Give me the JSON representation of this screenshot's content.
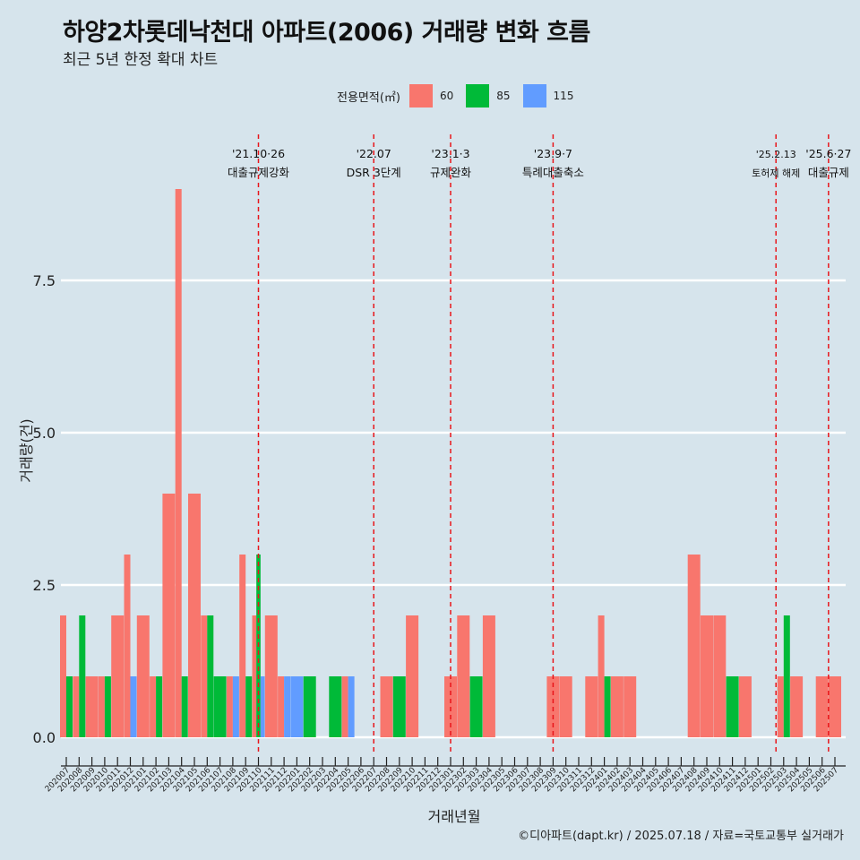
{
  "title": "하양2차롯데낙천대 아파트(2006) 거래량 변화 흐름",
  "subtitle": "최근 5년 한정 확대 차트",
  "caption": "©디아파트(dapt.kr) / 2025.07.18 / 자료=국토교통부 실거래가",
  "chart_data": {
    "type": "bar",
    "stacking": "dodge",
    "xlabel": "거래년월",
    "ylabel": "거래량(건)",
    "ylim": [
      -0.4,
      9.4
    ],
    "y_ticks": [
      0.0,
      2.5,
      5.0,
      7.5
    ],
    "y_tick_labels": [
      "0.0",
      "2.5",
      "5.0",
      "7.5"
    ],
    "grid": true,
    "legend_title": "전용면적(㎡)",
    "legend_position": "top",
    "categories": [
      "202007",
      "202008",
      "202009",
      "202010",
      "202011",
      "202012",
      "202101",
      "202102",
      "202103",
      "202104",
      "202105",
      "202106",
      "202107",
      "202108",
      "202109",
      "202110",
      "202111",
      "202112",
      "202201",
      "202202",
      "202203",
      "202204",
      "202205",
      "202206",
      "202207",
      "202208",
      "202209",
      "202210",
      "202211",
      "202212",
      "202301",
      "202302",
      "202303",
      "202304",
      "202305",
      "202306",
      "202307",
      "202308",
      "202309",
      "202310",
      "202311",
      "202312",
      "202401",
      "202402",
      "202403",
      "202404",
      "202405",
      "202406",
      "202407",
      "202408",
      "202409",
      "202410",
      "202411",
      "202412",
      "202501",
      "202502",
      "202503",
      "202504",
      "202505",
      "202506",
      "202507"
    ],
    "series": [
      {
        "name": "60",
        "color": "#f8766d",
        "values": [
          2,
          1,
          1,
          1,
          2,
          3,
          2,
          1,
          4,
          9,
          4,
          2,
          0,
          1,
          3,
          2,
          2,
          1,
          0,
          0,
          0,
          0,
          1,
          0,
          0,
          1,
          0,
          2,
          0,
          0,
          1,
          2,
          0,
          2,
          0,
          0,
          0,
          0,
          1,
          1,
          0,
          1,
          2,
          1,
          1,
          0,
          0,
          0,
          0,
          3,
          2,
          2,
          0,
          1,
          0,
          0,
          1,
          1,
          0,
          1,
          1
        ]
      },
      {
        "name": "85",
        "color": "#00ba38",
        "values": [
          1,
          2,
          0,
          1,
          0,
          0,
          0,
          1,
          0,
          1,
          0,
          2,
          1,
          0,
          1,
          3,
          0,
          0,
          0,
          1,
          0,
          1,
          0,
          0,
          0,
          0,
          1,
          0,
          0,
          0,
          0,
          0,
          1,
          0,
          0,
          0,
          0,
          0,
          0,
          0,
          0,
          0,
          1,
          0,
          0,
          0,
          0,
          0,
          0,
          0,
          0,
          0,
          1,
          0,
          0,
          0,
          2,
          0,
          0,
          0,
          0
        ]
      },
      {
        "name": "115",
        "color": "#619cff",
        "values": [
          0,
          0,
          0,
          0,
          0,
          1,
          0,
          0,
          0,
          0,
          0,
          0,
          0,
          1,
          0,
          1,
          0,
          1,
          1,
          0,
          0,
          0,
          1,
          0,
          0,
          0,
          0,
          0,
          0,
          0,
          0,
          0,
          0,
          0,
          0,
          0,
          0,
          0,
          0,
          0,
          0,
          0,
          0,
          0,
          0,
          0,
          0,
          0,
          0,
          0,
          0,
          0,
          0,
          0,
          0,
          0,
          0,
          0,
          0,
          0,
          0
        ]
      }
    ],
    "annotations": [
      {
        "x": "202110",
        "offset": 0.0,
        "date": "'21.10·26",
        "label": "대출규제강화",
        "small": false
      },
      {
        "x": "202207",
        "offset": 0.0,
        "date": "'22.07",
        "label": "DSR 3단계",
        "small": false
      },
      {
        "x": "202301",
        "offset": 0.0,
        "date": "'23.1·3",
        "label": "규제완화",
        "small": false
      },
      {
        "x": "202309",
        "offset": 0.0,
        "date": "'23.9·7",
        "label": "특례대출축소",
        "small": false
      },
      {
        "x": "202502",
        "offset": 0.4,
        "date": "'25.2.13",
        "label": "토허제 해제",
        "small": true
      },
      {
        "x": "202506",
        "offset": 0.5,
        "date": "'25.6·27",
        "label": "대출규제",
        "small": false
      }
    ]
  }
}
